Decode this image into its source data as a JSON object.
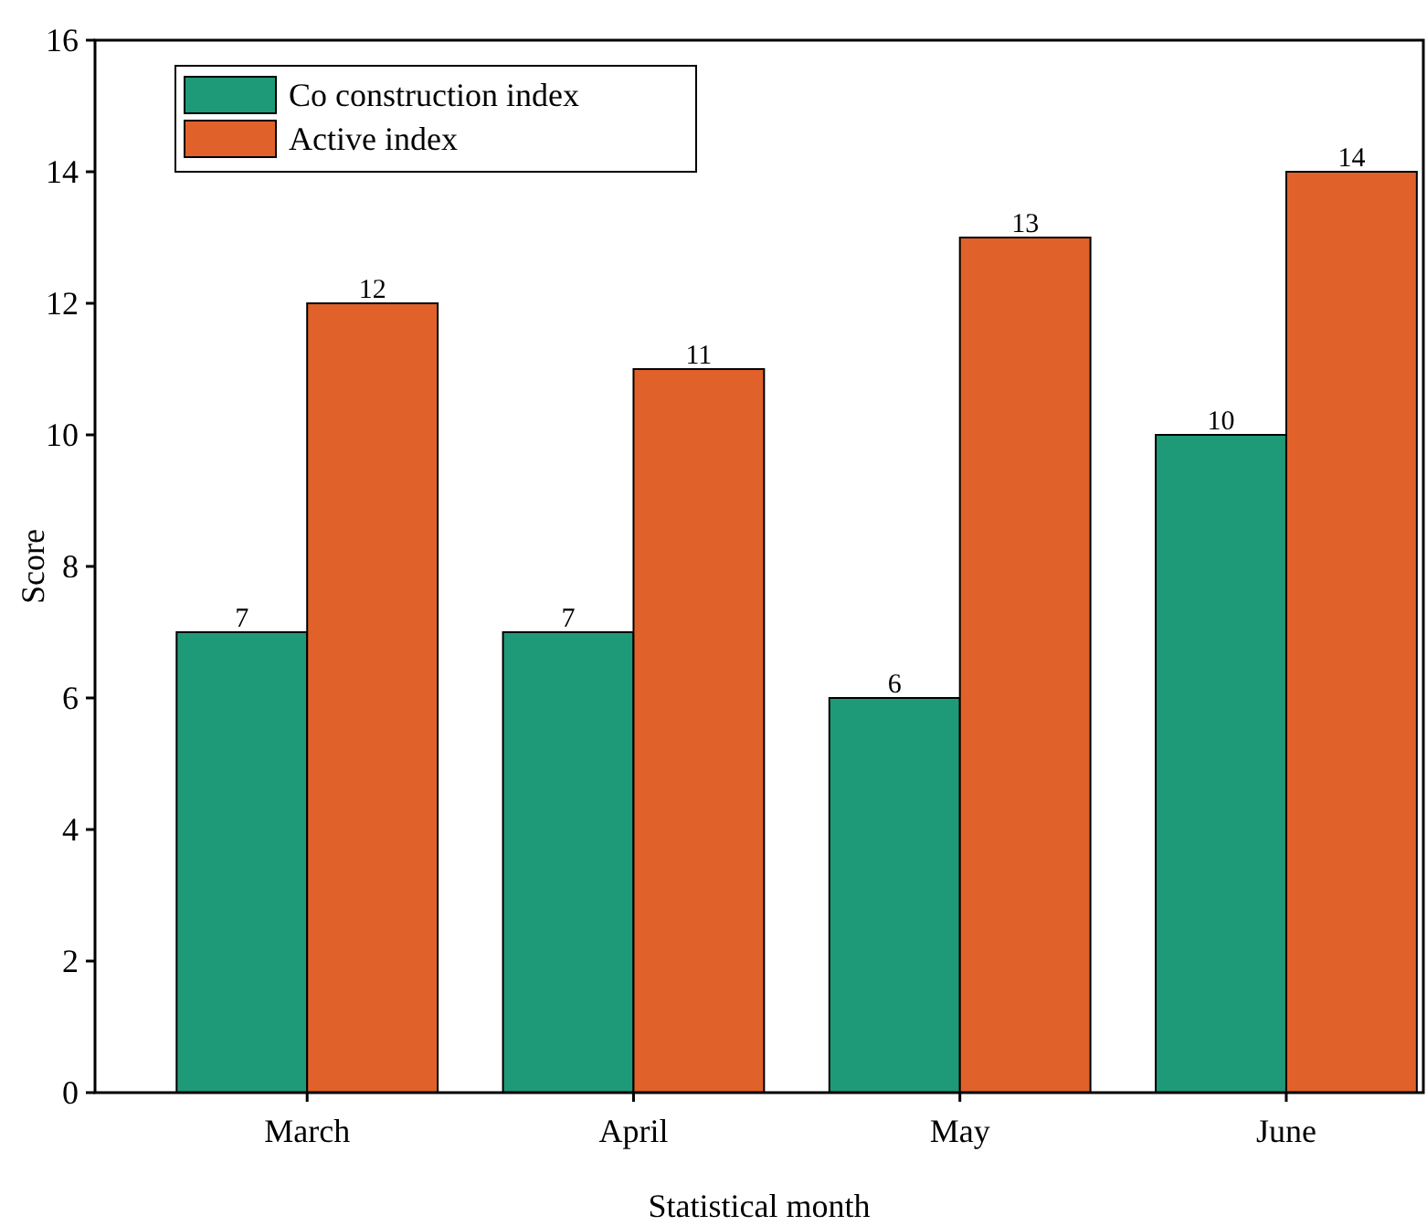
{
  "chart_data": {
    "type": "bar",
    "xlabel": "Statistical month",
    "ylabel": "Score",
    "categories": [
      "March",
      "April",
      "May",
      "June"
    ],
    "series": [
      {
        "name": "Co construction index",
        "color": "#1e9a78",
        "values": [
          7,
          7,
          6,
          10
        ]
      },
      {
        "name": "Active index",
        "color": "#e0622a",
        "values": [
          12,
          11,
          13,
          14
        ]
      }
    ],
    "ylim": [
      0,
      16
    ],
    "yticks": [
      0,
      2,
      4,
      6,
      8,
      10,
      12,
      14,
      16
    ],
    "grid": false,
    "legend": "top left",
    "data_labels": true
  }
}
